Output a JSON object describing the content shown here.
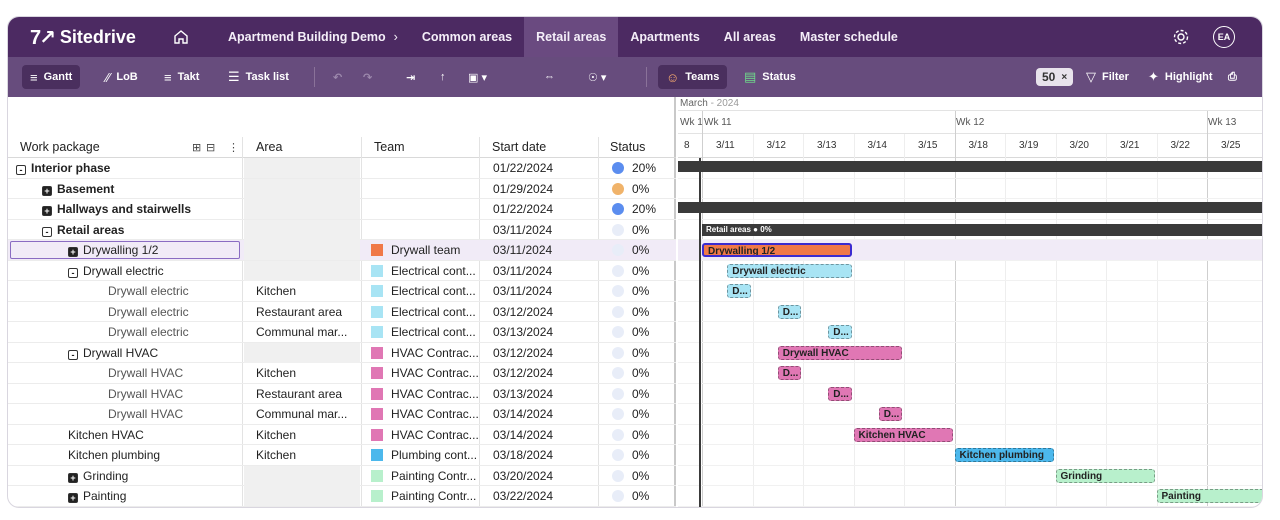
{
  "app": {
    "name": "Sitedrive",
    "logo_mark": "7↗"
  },
  "nav": {
    "items": [
      {
        "label": "Apartmend Building Demo",
        "chevron": "›",
        "active": false
      },
      {
        "label": "Common areas",
        "active": false
      },
      {
        "label": "Retail areas",
        "active": true
      },
      {
        "label": "Apartments",
        "active": false
      },
      {
        "label": "All areas",
        "active": false
      },
      {
        "label": "Master schedule",
        "active": false
      }
    ],
    "user_initials": "EA"
  },
  "toolbar": {
    "gantt": "Gantt",
    "lob": "LoB",
    "takt": "Takt",
    "task_list": "Task list",
    "teams": "Teams",
    "status": "Status",
    "zoom_value": "50",
    "zoom_clear": "×",
    "filter": "Filter",
    "highlight": "Highlight"
  },
  "grid": {
    "headers": {
      "work_package": "Work package",
      "area": "Area",
      "team": "Team",
      "start_date": "Start date",
      "status": "Status"
    },
    "rows": [
      {
        "name": "Interior phase",
        "level": 0,
        "toggle": "minus",
        "bold": true,
        "grey": true,
        "area": "",
        "team": "",
        "team_color": "",
        "date": "01/22/2024",
        "status": "20%",
        "dot": "#5b8def"
      },
      {
        "name": "Basement",
        "level": 1,
        "toggle": "plus",
        "bold": true,
        "grey": true,
        "area": "",
        "team": "",
        "team_color": "",
        "date": "01/29/2024",
        "status": "0%",
        "dot": "#f0b36a"
      },
      {
        "name": "Hallways and stairwells",
        "level": 1,
        "toggle": "plus",
        "bold": true,
        "grey": true,
        "area": "",
        "team": "",
        "team_color": "",
        "date": "01/22/2024",
        "status": "20%",
        "dot": "#5b8def"
      },
      {
        "name": "Retail areas",
        "level": 1,
        "toggle": "minus",
        "bold": true,
        "grey": true,
        "area": "",
        "team": "",
        "team_color": "",
        "date": "03/11/2024",
        "status": "0%",
        "dot": "#e8edf8"
      },
      {
        "name": "Drywalling 1/2",
        "level": 2,
        "toggle": "plus",
        "bold": false,
        "grey": true,
        "area": "",
        "team": "Drywall team",
        "team_color": "#f07848",
        "date": "03/11/2024",
        "status": "0%",
        "dot": "#e8edf8",
        "selected": true
      },
      {
        "name": "Drywall electric",
        "level": 2,
        "toggle": "minus",
        "bold": false,
        "grey": true,
        "area": "",
        "team": "Electrical cont...",
        "team_color": "#a8e4f4",
        "date": "03/11/2024",
        "status": "0%",
        "dot": "#e8edf8"
      },
      {
        "name": "Drywall electric",
        "level": 3,
        "toggle": "",
        "bold": false,
        "grey": false,
        "area": "Kitchen",
        "team": "Electrical cont...",
        "team_color": "#a8e4f4",
        "date": "03/11/2024",
        "status": "0%",
        "dot": "#e8edf8"
      },
      {
        "name": "Drywall electric",
        "level": 3,
        "toggle": "",
        "bold": false,
        "grey": false,
        "area": "Restaurant area",
        "team": "Electrical cont...",
        "team_color": "#a8e4f4",
        "date": "03/12/2024",
        "status": "0%",
        "dot": "#e8edf8"
      },
      {
        "name": "Drywall electric",
        "level": 3,
        "toggle": "",
        "bold": false,
        "grey": false,
        "area": "Communal mar...",
        "team": "Electrical cont...",
        "team_color": "#a8e4f4",
        "date": "03/13/2024",
        "status": "0%",
        "dot": "#e8edf8"
      },
      {
        "name": "Drywall HVAC",
        "level": 2,
        "toggle": "minus",
        "bold": false,
        "grey": true,
        "area": "",
        "team": "HVAC Contrac...",
        "team_color": "#e077b4",
        "date": "03/12/2024",
        "status": "0%",
        "dot": "#e8edf8"
      },
      {
        "name": "Drywall HVAC",
        "level": 3,
        "toggle": "",
        "bold": false,
        "grey": false,
        "area": "Kitchen",
        "team": "HVAC Contrac...",
        "team_color": "#e077b4",
        "date": "03/12/2024",
        "status": "0%",
        "dot": "#e8edf8"
      },
      {
        "name": "Drywall HVAC",
        "level": 3,
        "toggle": "",
        "bold": false,
        "grey": false,
        "area": "Restaurant area",
        "team": "HVAC Contrac...",
        "team_color": "#e077b4",
        "date": "03/13/2024",
        "status": "0%",
        "dot": "#e8edf8"
      },
      {
        "name": "Drywall HVAC",
        "level": 3,
        "toggle": "",
        "bold": false,
        "grey": false,
        "area": "Communal mar...",
        "team": "HVAC Contrac...",
        "team_color": "#e077b4",
        "date": "03/14/2024",
        "status": "0%",
        "dot": "#e8edf8"
      },
      {
        "name": "Kitchen HVAC",
        "level": 2,
        "toggle": "",
        "bold": false,
        "grey": false,
        "area": "Kitchen",
        "team": "HVAC Contrac...",
        "team_color": "#e077b4",
        "date": "03/14/2024",
        "status": "0%",
        "dot": "#e8edf8"
      },
      {
        "name": "Kitchen plumbing",
        "level": 2,
        "toggle": "",
        "bold": false,
        "grey": false,
        "area": "Kitchen",
        "team": "Plumbing cont...",
        "team_color": "#4cb8ec",
        "date": "03/18/2024",
        "status": "0%",
        "dot": "#e8edf8"
      },
      {
        "name": "Grinding",
        "level": 2,
        "toggle": "plus",
        "bold": false,
        "grey": true,
        "area": "",
        "team": "Painting Contr...",
        "team_color": "#b8f0cc",
        "date": "03/20/2024",
        "status": "0%",
        "dot": "#e8edf8"
      },
      {
        "name": "Painting",
        "level": 2,
        "toggle": "plus",
        "bold": false,
        "grey": true,
        "area": "",
        "team": "Painting Contr...",
        "team_color": "#b8f0cc",
        "date": "03/22/2024",
        "status": "0%",
        "dot": "#e8edf8"
      }
    ]
  },
  "gantt": {
    "month_label": "March",
    "year_label": "- 2024",
    "week_labels": [
      "Wk 1",
      "Wk 11",
      "Wk 12",
      "Wk 13"
    ],
    "days": [
      "8",
      "3/11",
      "3/12",
      "3/13",
      "3/14",
      "3/15",
      "3/18",
      "3/19",
      "3/20",
      "3/21",
      "3/22",
      "3/25"
    ],
    "retail_summary_label": "Retail areas",
    "retail_summary_status": "0%",
    "bars": [
      {
        "row": 4,
        "start_day": 0,
        "span_days": 3,
        "label": "Drywalling 1/2",
        "color": "#f07848",
        "selected": true
      },
      {
        "row": 5,
        "start_day": 0.5,
        "span_days": 2.5,
        "label": "Drywall electric",
        "color": "#a8e4f4"
      },
      {
        "row": 6,
        "start_day": 0.5,
        "span_days": 0.5,
        "label": "D...",
        "color": "#a8e4f4"
      },
      {
        "row": 7,
        "start_day": 1.5,
        "span_days": 0.5,
        "label": "D...",
        "color": "#a8e4f4"
      },
      {
        "row": 8,
        "start_day": 2.5,
        "span_days": 0.5,
        "label": "D...",
        "color": "#a8e4f4"
      },
      {
        "row": 9,
        "start_day": 1.5,
        "span_days": 2.5,
        "label": "Drywall HVAC",
        "color": "#e077b4"
      },
      {
        "row": 10,
        "start_day": 1.5,
        "span_days": 0.5,
        "label": "D...",
        "color": "#e077b4"
      },
      {
        "row": 11,
        "start_day": 2.5,
        "span_days": 0.5,
        "label": "D...",
        "color": "#e077b4"
      },
      {
        "row": 12,
        "start_day": 3.5,
        "span_days": 0.5,
        "label": "D...",
        "color": "#e077b4"
      },
      {
        "row": 13,
        "start_day": 3.0,
        "span_days": 2.0,
        "label": "Kitchen HVAC",
        "color": "#e077b4"
      },
      {
        "row": 14,
        "start_day": 5.0,
        "span_days": 2.0,
        "label": "Kitchen plumbing",
        "color": "#4cb8ec"
      },
      {
        "row": 15,
        "start_day": 7.0,
        "span_days": 2.0,
        "label": "Grinding",
        "color": "#b8f0cc"
      },
      {
        "row": 16,
        "start_day": 9.0,
        "span_days": 2.5,
        "label": "Painting",
        "color": "#b8f0cc"
      }
    ]
  }
}
